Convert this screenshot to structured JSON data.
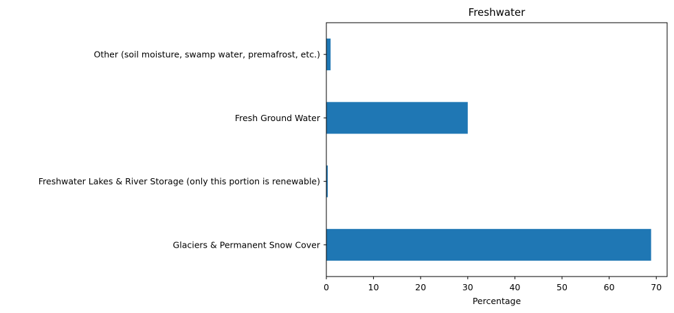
{
  "chart_data": {
    "type": "bar",
    "orientation": "horizontal",
    "title": "Freshwater",
    "xlabel": "Percentage",
    "ylabel": "",
    "categories": [
      "Glaciers & Permanent Snow Cover",
      "Freshwater Lakes & River Storage (only this portion is renewable)",
      "Fresh Ground Water",
      "Other (soil moisture, swamp water, premafrost, etc.)"
    ],
    "values": [
      68.9,
      0.3,
      30.0,
      0.9
    ],
    "xlim": [
      0,
      72.3
    ],
    "xticks": [
      0,
      10,
      20,
      30,
      40,
      50,
      60,
      70
    ],
    "xtick_labels": [
      "0",
      "10",
      "20",
      "30",
      "40",
      "50",
      "60",
      "70"
    ],
    "bar_color": "#1f77b4",
    "grid": false,
    "legend": "none"
  }
}
